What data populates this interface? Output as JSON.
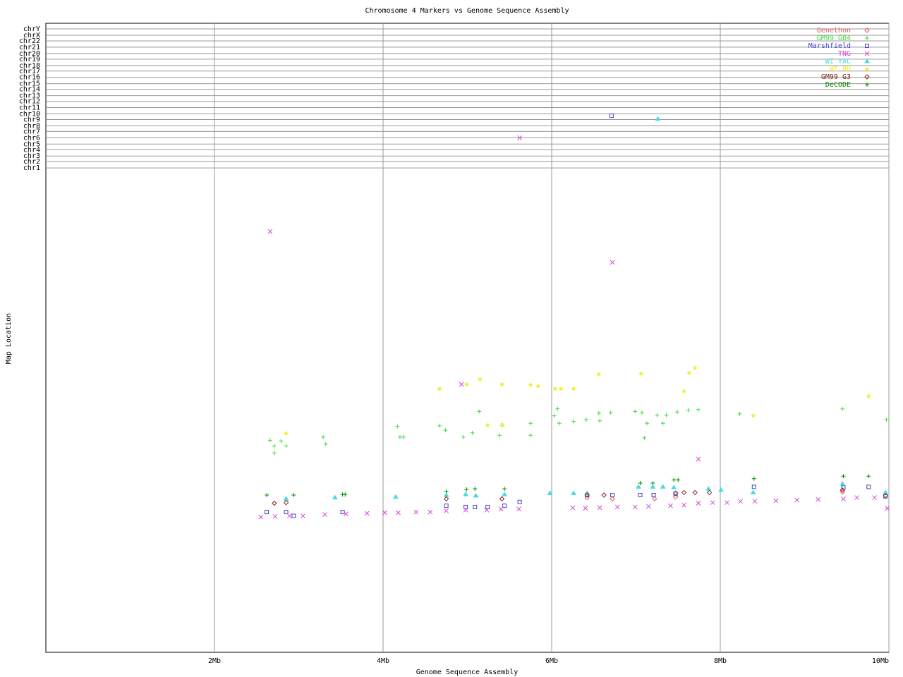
{
  "chart_data": {
    "type": "scatter",
    "title": "Chromosome 4 Markers vs Genome Sequence Assembly",
    "x_label": "Genome Sequence Assembly",
    "y_label": "Map Location",
    "xlim": [
      0,
      10
    ],
    "ylim": [
      0,
      100
    ],
    "xticks": [
      {
        "value": 2,
        "label": "2Mb"
      },
      {
        "value": 4,
        "label": "4Mb"
      },
      {
        "value": 6,
        "label": "6Mb"
      },
      {
        "value": 8,
        "label": "8Mb"
      },
      {
        "value": 10,
        "label": "10Mb"
      }
    ],
    "yticks": [
      {
        "value": 77.0,
        "label": "chr1"
      },
      {
        "value": 78.0,
        "label": "chr2"
      },
      {
        "value": 78.9,
        "label": "chr3"
      },
      {
        "value": 79.9,
        "label": "chr4"
      },
      {
        "value": 80.8,
        "label": "chr5"
      },
      {
        "value": 81.8,
        "label": "chr6"
      },
      {
        "value": 82.8,
        "label": "chr7"
      },
      {
        "value": 83.7,
        "label": "chr8"
      },
      {
        "value": 84.7,
        "label": "chr9"
      },
      {
        "value": 85.6,
        "label": "chr10"
      },
      {
        "value": 86.6,
        "label": "chr11"
      },
      {
        "value": 87.6,
        "label": "chr12"
      },
      {
        "value": 88.5,
        "label": "chr13"
      },
      {
        "value": 89.5,
        "label": "chr14"
      },
      {
        "value": 90.4,
        "label": "chr15"
      },
      {
        "value": 91.4,
        "label": "chr16"
      },
      {
        "value": 92.4,
        "label": "chr17"
      },
      {
        "value": 93.3,
        "label": "chr18"
      },
      {
        "value": 94.3,
        "label": "chr19"
      },
      {
        "value": 95.2,
        "label": "chr20"
      },
      {
        "value": 96.2,
        "label": "chr21"
      },
      {
        "value": 97.2,
        "label": "chr22"
      },
      {
        "value": 98.1,
        "label": "chrX"
      },
      {
        "value": 99.1,
        "label": "chrY"
      }
    ],
    "grid": true,
    "legend": "top-right",
    "series": [
      {
        "name": "Genethon",
        "color": "#e05a5a",
        "marker": "diamond",
        "x": [
          6.42,
          6.72,
          7.22,
          7.47,
          9.45
        ],
        "values": [
          24.6,
          24.4,
          24.4,
          24.7,
          25.5
        ]
      },
      {
        "name": "GM99 GB4",
        "color": "#44dd44",
        "marker": "plus",
        "x": [
          2.66,
          2.71,
          2.71,
          2.79,
          2.85,
          3.29,
          3.32,
          4.17,
          4.2,
          4.24,
          4.67,
          4.74,
          4.95,
          5.06,
          5.14,
          5.38,
          5.41,
          5.75,
          5.75,
          6.03,
          6.07,
          6.09,
          6.26,
          6.41,
          6.56,
          6.57,
          6.7,
          6.99,
          7.07,
          7.13,
          7.1,
          7.25,
          7.32,
          7.36,
          7.49,
          7.62,
          7.74,
          8.23,
          9.45,
          9.97
        ],
        "values": [
          33.7,
          32.8,
          31.7,
          33.6,
          32.8,
          34.2,
          33.1,
          35.9,
          34.2,
          34.2,
          36.0,
          35.3,
          34.2,
          34.9,
          38.3,
          34.5,
          36.1,
          36.4,
          34.5,
          37.6,
          38.7,
          36.4,
          36.7,
          37.0,
          38.0,
          36.8,
          38.1,
          38.3,
          38.1,
          36.4,
          34.1,
          37.7,
          36.4,
          37.7,
          38.2,
          38.5,
          38.6,
          37.9,
          38.7,
          37.0
        ]
      },
      {
        "name": "Marshfield",
        "color": "#4444cc",
        "marker": "square",
        "x": [
          6.71,
          2.62,
          2.85,
          2.94,
          3.52,
          4.75,
          4.98,
          5.09,
          5.24,
          5.44,
          5.62,
          6.42,
          6.72,
          7.05,
          7.21,
          7.47,
          8.4,
          9.46,
          9.76,
          9.96
        ],
        "values": [
          85.3,
          22.3,
          22.3,
          21.7,
          22.3,
          23.3,
          23.1,
          23.1,
          23.1,
          23.3,
          23.9,
          25.0,
          25.0,
          25.0,
          25.0,
          25.2,
          26.3,
          26.2,
          26.3,
          24.8
        ]
      },
      {
        "name": "TNG",
        "color": "#dd44dd",
        "marker": "x",
        "x": [
          2.66,
          6.72,
          5.62,
          7.74,
          4.93,
          2.55,
          2.72,
          2.89,
          3.05,
          3.31,
          3.56,
          3.81,
          4.02,
          4.18,
          4.39,
          4.56,
          4.75,
          4.98,
          5.23,
          5.4,
          5.61,
          6.25,
          6.4,
          6.57,
          6.78,
          6.99,
          7.15,
          7.41,
          7.57,
          7.74,
          7.91,
          8.08,
          8.24,
          8.41,
          8.66,
          8.91,
          9.16,
          9.46,
          9.62,
          9.83,
          9.98
        ],
        "values": [
          66.9,
          62.0,
          81.8,
          30.7,
          42.6,
          21.5,
          21.6,
          21.7,
          21.7,
          21.9,
          22.0,
          22.1,
          22.2,
          22.2,
          22.3,
          22.3,
          22.5,
          22.6,
          22.6,
          22.8,
          22.8,
          23.0,
          22.9,
          23.0,
          23.1,
          23.1,
          23.2,
          23.3,
          23.4,
          23.7,
          23.8,
          23.8,
          24.0,
          24.0,
          24.1,
          24.2,
          24.3,
          24.4,
          24.6,
          24.6,
          22.9
        ]
      },
      {
        "name": "WI YAC",
        "color": "#44dddd",
        "marker": "triangle",
        "x": [
          7.26,
          3.43,
          4.15,
          4.75,
          4.98,
          5.1,
          5.44,
          5.98,
          6.26,
          6.42,
          7.03,
          7.2,
          7.32,
          7.45,
          7.86,
          8.01,
          8.39,
          9.45,
          9.96,
          2.85
        ],
        "values": [
          84.8,
          24.6,
          24.7,
          25.0,
          25.1,
          24.9,
          25.1,
          25.3,
          25.3,
          25.3,
          26.3,
          26.3,
          26.3,
          26.2,
          26.0,
          25.8,
          25.4,
          26.8,
          25.4,
          24.4
        ]
      },
      {
        "name": "WI RH",
        "color": "#eeee22",
        "marker": "star",
        "x": [
          2.85,
          4.67,
          4.99,
          5.15,
          5.41,
          5.24,
          5.42,
          5.75,
          5.84,
          6.04,
          6.11,
          6.26,
          6.56,
          7.06,
          7.57,
          7.63,
          7.7,
          8.39,
          9.76
        ],
        "values": [
          34.8,
          41.9,
          42.6,
          43.4,
          42.6,
          36.1,
          36.1,
          42.5,
          42.3,
          41.9,
          41.9,
          41.9,
          44.2,
          44.3,
          41.5,
          44.4,
          45.2,
          37.6,
          40.7
        ]
      },
      {
        "name": "GM99 G3",
        "color": "#882222",
        "marker": "diamond",
        "x": [
          2.71,
          2.85,
          4.75,
          5.41,
          6.42,
          6.62,
          7.47,
          7.57,
          7.7,
          7.87,
          9.45,
          9.96
        ],
        "values": [
          23.7,
          23.8,
          24.4,
          24.4,
          25.0,
          25.0,
          25.3,
          25.4,
          25.4,
          25.4,
          25.8,
          24.9
        ]
      },
      {
        "name": "DeCODE",
        "color": "#008800",
        "marker": "plus",
        "x": [
          2.62,
          2.94,
          3.52,
          3.55,
          4.75,
          4.99,
          5.09,
          5.44,
          7.05,
          7.2,
          7.45,
          7.5,
          8.4,
          9.46,
          9.76
        ],
        "values": [
          25.0,
          25.0,
          25.1,
          25.1,
          25.6,
          25.9,
          26.0,
          26.0,
          26.9,
          26.9,
          27.4,
          27.4,
          27.6,
          28.0,
          28.0
        ]
      }
    ]
  }
}
